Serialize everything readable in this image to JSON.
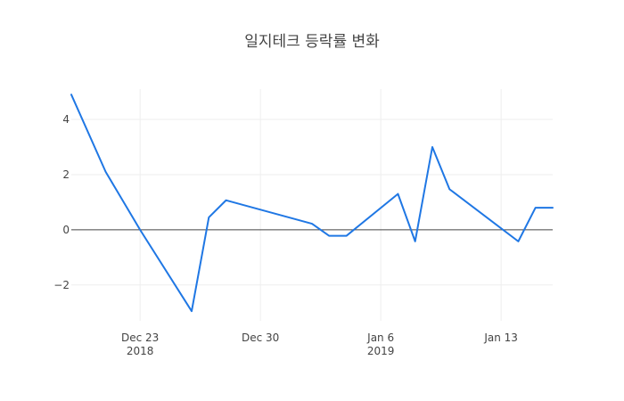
{
  "chart_data": {
    "type": "line",
    "title": "일지테크 등락률 변화",
    "xlabel": "",
    "ylabel": "",
    "x_range": [
      "2018-12-19",
      "2019-01-16"
    ],
    "ylim": [
      -3.3,
      5.1
    ],
    "grid": true,
    "zero_line": true,
    "line_color": "#1f77e4",
    "x_ticks": [
      {
        "date": "2018-12-23",
        "label": "Dec 23",
        "sublabel": "2018"
      },
      {
        "date": "2018-12-30",
        "label": "Dec 30",
        "sublabel": ""
      },
      {
        "date": "2019-01-06",
        "label": "Jan 6",
        "sublabel": "2019"
      },
      {
        "date": "2019-01-13",
        "label": "Jan 13",
        "sublabel": ""
      }
    ],
    "y_ticks": [
      {
        "value": -2,
        "label": "−2"
      },
      {
        "value": 0,
        "label": "0"
      },
      {
        "value": 2,
        "label": "2"
      },
      {
        "value": 4,
        "label": "4"
      }
    ],
    "series": [
      {
        "name": "",
        "x": [
          "2018-12-19",
          "2018-12-21",
          "2018-12-23",
          "2018-12-26",
          "2018-12-27",
          "2018-12-28",
          "2019-01-02",
          "2019-01-03",
          "2019-01-04",
          "2019-01-07",
          "2019-01-08",
          "2019-01-09",
          "2019-01-10",
          "2019-01-14",
          "2019-01-15",
          "2019-01-16"
        ],
        "y": [
          4.9,
          2.1,
          0.0,
          -2.95,
          0.45,
          1.07,
          0.22,
          -0.22,
          -0.22,
          1.3,
          -0.42,
          3.0,
          1.47,
          -0.42,
          0.8,
          0.8
        ]
      }
    ]
  }
}
